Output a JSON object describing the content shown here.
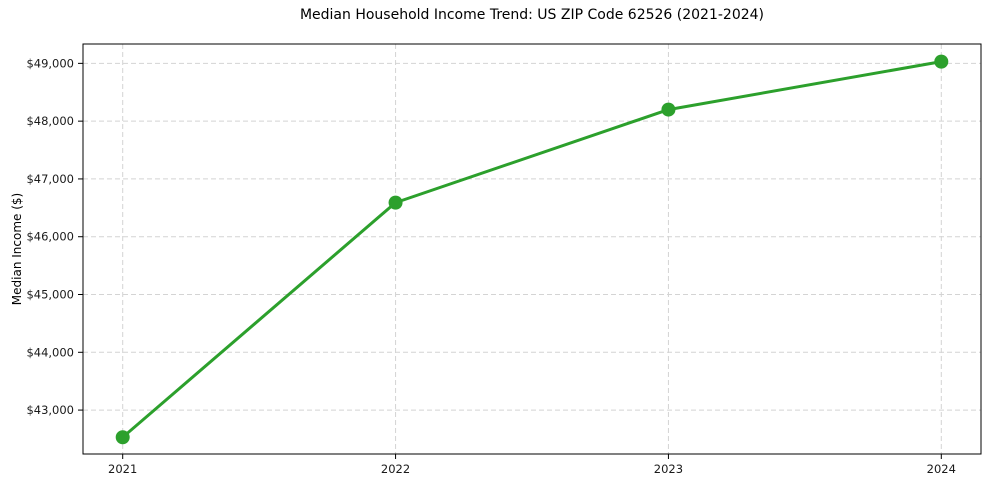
{
  "chart_data": {
    "type": "line",
    "title": "Median Household Income Trend: US ZIP Code 62526 (2021-2024)",
    "xlabel": "",
    "ylabel": "Median Income ($)",
    "categories": [
      "2021",
      "2022",
      "2023",
      "2024"
    ],
    "values": [
      42530,
      46590,
      48200,
      49030
    ],
    "y_ticks": [
      43000,
      44000,
      45000,
      46000,
      47000,
      48000,
      49000
    ],
    "y_tick_labels": [
      "$43,000",
      "$44,000",
      "$45,000",
      "$46,000",
      "$47,000",
      "$48,000",
      "$49,000"
    ],
    "ylim": [
      42240,
      49335
    ],
    "grid": true,
    "grid_style": "dashed",
    "legend": "none",
    "line_color": "#2ca02c",
    "marker": "circle",
    "grid_color": "#d4d4d4",
    "spine_color": "#000000",
    "tick_text_color": "#1a1a1a",
    "background": "#ffffff"
  }
}
